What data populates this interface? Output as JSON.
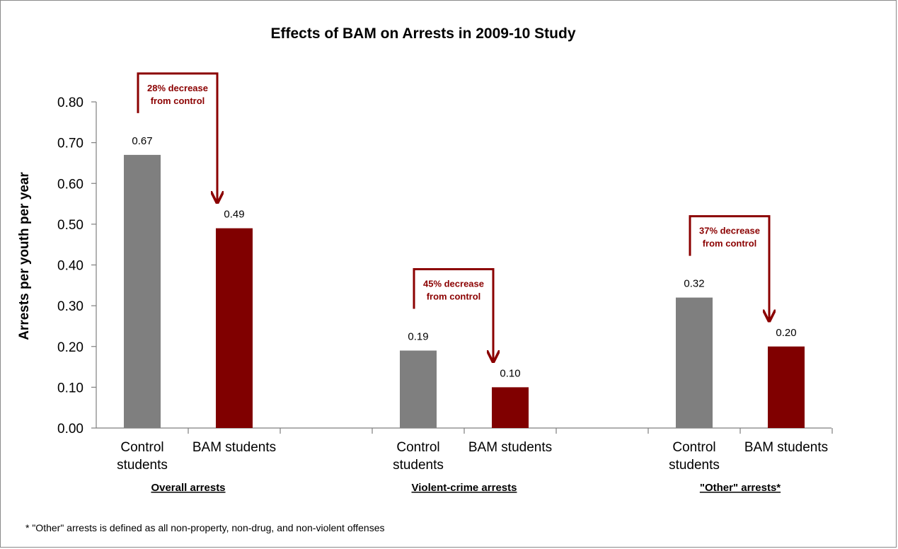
{
  "chart_data": {
    "type": "bar",
    "title": "Effects of BAM on Arrests in 2009-10 Study",
    "ylabel": "Arrests per youth per year",
    "ylim": [
      0,
      0.8
    ],
    "yticks": [
      "0.00",
      "0.10",
      "0.20",
      "0.30",
      "0.40",
      "0.50",
      "0.60",
      "0.70",
      "0.80"
    ],
    "colors": {
      "control": "#7f7f7f",
      "bam": "#800000",
      "annotation": "#8b0000"
    },
    "groups": [
      {
        "label": "Overall arrests",
        "bars": [
          {
            "category": [
              "Control",
              "students"
            ],
            "value": 0.67,
            "label": "0.67",
            "series": "control"
          },
          {
            "category": [
              "BAM students"
            ],
            "value": 0.49,
            "label": "0.49",
            "series": "bam"
          }
        ],
        "annotation": [
          "28% decrease",
          "from control"
        ]
      },
      {
        "label": "Violent-crime arrests",
        "bars": [
          {
            "category": [
              "Control",
              "students"
            ],
            "value": 0.19,
            "label": "0.19",
            "series": "control"
          },
          {
            "category": [
              "BAM students"
            ],
            "value": 0.1,
            "label": "0.10",
            "series": "bam"
          }
        ],
        "annotation": [
          "45% decrease",
          "from control"
        ]
      },
      {
        "label": "\"Other\" arrests*",
        "bars": [
          {
            "category": [
              "Control",
              "students"
            ],
            "value": 0.32,
            "label": "0.32",
            "series": "control"
          },
          {
            "category": [
              "BAM students"
            ],
            "value": 0.2,
            "label": "0.20",
            "series": "bam"
          }
        ],
        "annotation": [
          "37% decrease",
          "from control"
        ]
      }
    ],
    "footnote": "* \"Other\" arrests is defined as all non-property, non-drug, and non-violent offenses"
  }
}
